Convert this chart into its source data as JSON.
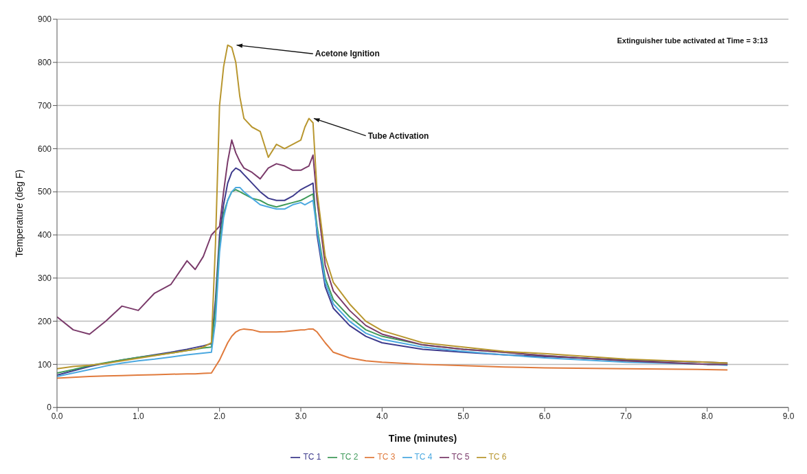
{
  "chart_data": {
    "type": "line",
    "xlabel": "Time (minutes)",
    "ylabel": "Temperature (deg F)",
    "x": [
      0,
      0.2,
      0.4,
      0.6,
      0.8,
      1.0,
      1.2,
      1.4,
      1.6,
      1.7,
      1.8,
      1.9,
      1.95,
      2.0,
      2.05,
      2.1,
      2.15,
      2.2,
      2.25,
      2.3,
      2.4,
      2.5,
      2.6,
      2.7,
      2.8,
      2.9,
      3.0,
      3.05,
      3.1,
      3.15,
      3.2,
      3.3,
      3.4,
      3.6,
      3.8,
      4.0,
      4.5,
      5.0,
      5.5,
      6.0,
      7.0,
      8.0,
      8.25
    ],
    "series": [
      {
        "name": "TC 1",
        "color": "#3d3a8c",
        "values": [
          75,
          85,
          95,
          103,
          110,
          116,
          122,
          128,
          135,
          139,
          143,
          148,
          250,
          400,
          470,
          520,
          545,
          555,
          550,
          540,
          520,
          500,
          485,
          480,
          480,
          490,
          505,
          510,
          515,
          520,
          400,
          280,
          230,
          190,
          165,
          150,
          135,
          128,
          122,
          118,
          110,
          105,
          103
        ]
      },
      {
        "name": "TC 2",
        "color": "#3f9a5a",
        "values": [
          80,
          88,
          97,
          104,
          110,
          116,
          121,
          126,
          132,
          135,
          138,
          140,
          230,
          380,
          450,
          480,
          500,
          505,
          500,
          495,
          485,
          480,
          470,
          465,
          470,
          475,
          480,
          485,
          490,
          495,
          420,
          300,
          250,
          210,
          180,
          165,
          145,
          135,
          128,
          120,
          108,
          100,
          100
        ]
      },
      {
        "name": "TC 3",
        "color": "#e07a3c",
        "values": [
          68,
          70,
          72,
          73,
          74,
          75,
          76,
          77,
          78,
          78,
          79,
          80,
          95,
          110,
          130,
          150,
          165,
          175,
          180,
          182,
          180,
          175,
          175,
          175,
          176,
          178,
          180,
          180,
          182,
          182,
          175,
          150,
          128,
          115,
          108,
          105,
          100,
          97,
          94,
          92,
          90,
          88,
          87
        ]
      },
      {
        "name": "TC 4",
        "color": "#4aa8e0",
        "values": [
          72,
          80,
          88,
          96,
          103,
          108,
          112,
          117,
          122,
          124,
          126,
          128,
          200,
          360,
          440,
          480,
          500,
          510,
          510,
          500,
          485,
          470,
          465,
          460,
          460,
          470,
          475,
          470,
          475,
          480,
          410,
          290,
          240,
          200,
          172,
          158,
          140,
          130,
          122,
          115,
          105,
          100,
          98
        ]
      },
      {
        "name": "TC 5",
        "color": "#7a3a6a",
        "values": [
          210,
          180,
          170,
          200,
          235,
          225,
          265,
          285,
          340,
          320,
          350,
          400,
          410,
          420,
          500,
          570,
          620,
          590,
          570,
          555,
          545,
          530,
          555,
          565,
          560,
          550,
          550,
          555,
          560,
          585,
          480,
          330,
          270,
          225,
          190,
          170,
          145,
          135,
          128,
          120,
          108,
          100,
          100
        ]
      },
      {
        "name": "TC 6",
        "color": "#b8962e",
        "values": [
          90,
          95,
          98,
          102,
          108,
          114,
          120,
          126,
          132,
          135,
          140,
          150,
          380,
          700,
          790,
          840,
          835,
          800,
          720,
          670,
          650,
          640,
          580,
          610,
          600,
          610,
          620,
          650,
          670,
          660,
          500,
          350,
          290,
          240,
          200,
          178,
          150,
          140,
          130,
          125,
          112,
          105,
          103
        ]
      }
    ],
    "xlim": [
      0,
      9
    ],
    "xticks": [
      {
        "value": 0,
        "label": "0.0"
      },
      {
        "value": 1,
        "label": "1.0"
      },
      {
        "value": 2,
        "label": "2.0"
      },
      {
        "value": 3,
        "label": "3.0"
      },
      {
        "value": 4,
        "label": "4.0"
      },
      {
        "value": 5,
        "label": "5.0"
      },
      {
        "value": 6,
        "label": "6.0"
      },
      {
        "value": 7,
        "label": "7.0"
      },
      {
        "value": 8,
        "label": "8.0"
      },
      {
        "value": 9,
        "label": "9.0"
      }
    ],
    "ylim": [
      0,
      900
    ],
    "yticks": [
      0,
      100,
      200,
      300,
      400,
      500,
      600,
      700,
      800,
      900
    ],
    "grid": "y",
    "legend": "bottom",
    "line_style": "solid",
    "annotations": [
      {
        "text": "Acetone Ignition",
        "x": 2.15,
        "y": 840
      },
      {
        "text": "Tube Activation",
        "x": 3.1,
        "y": 670
      },
      "Extinguisher tube activated at Time = 3:13"
    ]
  }
}
